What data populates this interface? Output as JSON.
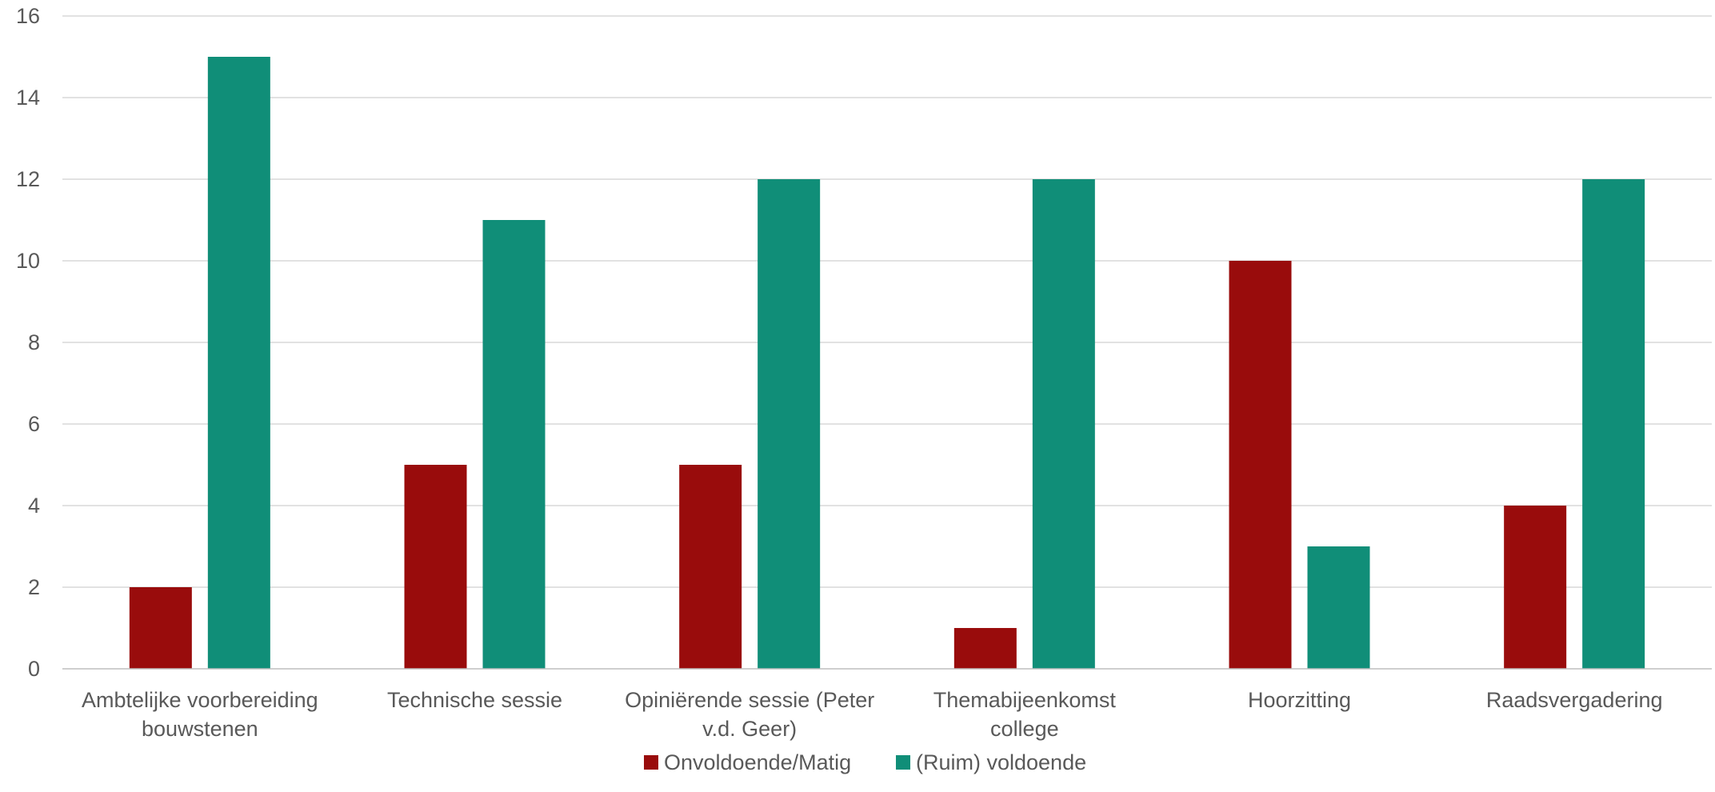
{
  "chart_data": {
    "type": "bar",
    "categories": [
      [
        "Ambtelijke voorbereiding",
        "bouwstenen"
      ],
      [
        "Technische sessie"
      ],
      [
        "Opiniërende sessie (Peter",
        "v.d. Geer)"
      ],
      [
        "Themabijeenkomst",
        "college"
      ],
      [
        "Hoorzitting"
      ],
      [
        "Raadsvergadering"
      ]
    ],
    "series": [
      {
        "name": "Onvoldoende/Matig",
        "color": "#990c0c",
        "values": [
          2,
          5,
          5,
          1,
          10,
          4
        ]
      },
      {
        "name": "(Ruim) voldoende",
        "color": "#108e78",
        "values": [
          15,
          11,
          12,
          12,
          3,
          12
        ]
      }
    ],
    "ylim": [
      0,
      16
    ],
    "yticks": [
      0,
      2,
      4,
      6,
      8,
      10,
      12,
      14,
      16
    ],
    "grid": true,
    "legend": "bottom-center"
  }
}
